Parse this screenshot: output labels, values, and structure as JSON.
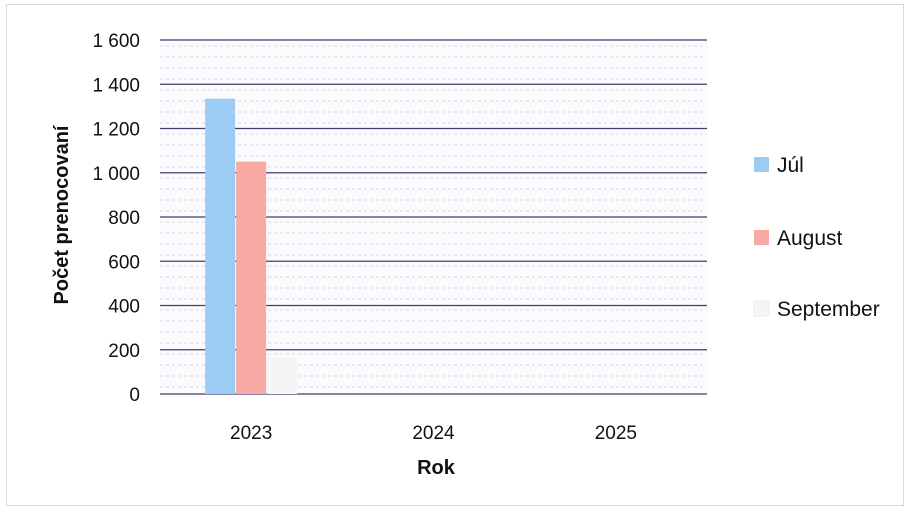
{
  "chart_data": {
    "type": "bar",
    "categories": [
      "2023",
      "2024",
      "2025"
    ],
    "series": [
      {
        "name": "Júl",
        "values": [
          1335,
          0,
          0
        ],
        "color": "#9ccbf4"
      },
      {
        "name": "August",
        "values": [
          1050,
          0,
          0
        ],
        "color": "#f7aaa3"
      },
      {
        "name": "September",
        "values": [
          165,
          0,
          0
        ],
        "color": "#f7f4f6"
      }
    ],
    "yticks": [
      0,
      200,
      400,
      600,
      800,
      1000,
      1200,
      1400,
      1600
    ],
    "ytick_labels": [
      "0",
      "200",
      "400",
      "600",
      "800",
      "1 000",
      "1 200",
      "1 400",
      "1 600"
    ],
    "ylim": [
      0,
      1600
    ],
    "xlabel": "Rok",
    "ylabel": "Počet prenocovaní",
    "grid": true,
    "legend_position": "right",
    "gridline_color": "#3d3f6e"
  }
}
